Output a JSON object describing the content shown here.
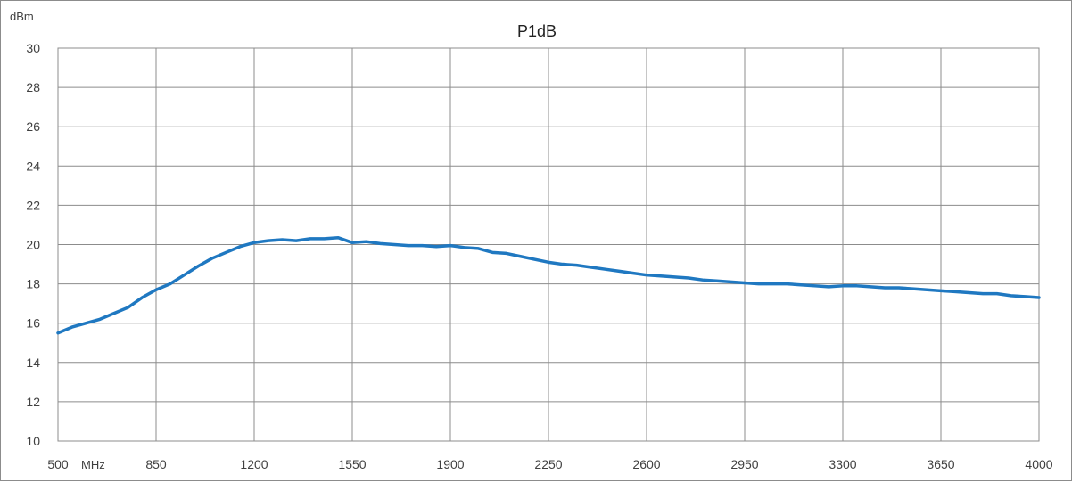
{
  "chart_data": {
    "type": "line",
    "title": "P1dB",
    "ylabel": "dBm",
    "x_unit": "MHz",
    "xlim": [
      500,
      4000
    ],
    "ylim": [
      10,
      30
    ],
    "x_ticks": [
      500,
      850,
      1200,
      1550,
      1900,
      2250,
      2600,
      2950,
      3300,
      3650,
      4000
    ],
    "y_ticks": [
      10,
      12,
      14,
      16,
      18,
      20,
      22,
      24,
      26,
      28,
      30
    ],
    "grid": true,
    "series": [
      {
        "color": "#1f78c1",
        "points": [
          [
            500,
            15.5
          ],
          [
            550,
            15.8
          ],
          [
            600,
            16.0
          ],
          [
            650,
            16.2
          ],
          [
            700,
            16.5
          ],
          [
            750,
            16.8
          ],
          [
            800,
            17.3
          ],
          [
            850,
            17.7
          ],
          [
            900,
            18.0
          ],
          [
            950,
            18.45
          ],
          [
            1000,
            18.9
          ],
          [
            1050,
            19.3
          ],
          [
            1100,
            19.6
          ],
          [
            1150,
            19.9
          ],
          [
            1200,
            20.1
          ],
          [
            1250,
            20.2
          ],
          [
            1300,
            20.25
          ],
          [
            1350,
            20.2
          ],
          [
            1400,
            20.3
          ],
          [
            1450,
            20.3
          ],
          [
            1500,
            20.35
          ],
          [
            1550,
            20.1
          ],
          [
            1600,
            20.15
          ],
          [
            1650,
            20.05
          ],
          [
            1700,
            20.0
          ],
          [
            1750,
            19.95
          ],
          [
            1800,
            19.95
          ],
          [
            1850,
            19.9
          ],
          [
            1900,
            19.95
          ],
          [
            1950,
            19.85
          ],
          [
            2000,
            19.8
          ],
          [
            2050,
            19.6
          ],
          [
            2100,
            19.55
          ],
          [
            2150,
            19.4
          ],
          [
            2200,
            19.25
          ],
          [
            2250,
            19.1
          ],
          [
            2300,
            19.0
          ],
          [
            2350,
            18.95
          ],
          [
            2400,
            18.85
          ],
          [
            2450,
            18.75
          ],
          [
            2500,
            18.65
          ],
          [
            2550,
            18.55
          ],
          [
            2600,
            18.45
          ],
          [
            2650,
            18.4
          ],
          [
            2700,
            18.35
          ],
          [
            2750,
            18.3
          ],
          [
            2800,
            18.2
          ],
          [
            2850,
            18.15
          ],
          [
            2900,
            18.1
          ],
          [
            2950,
            18.05
          ],
          [
            3000,
            18.0
          ],
          [
            3050,
            18.0
          ],
          [
            3100,
            18.0
          ],
          [
            3150,
            17.95
          ],
          [
            3200,
            17.9
          ],
          [
            3250,
            17.85
          ],
          [
            3300,
            17.9
          ],
          [
            3350,
            17.9
          ],
          [
            3400,
            17.85
          ],
          [
            3450,
            17.8
          ],
          [
            3500,
            17.8
          ],
          [
            3550,
            17.75
          ],
          [
            3600,
            17.7
          ],
          [
            3650,
            17.65
          ],
          [
            3700,
            17.6
          ],
          [
            3750,
            17.55
          ],
          [
            3800,
            17.5
          ],
          [
            3850,
            17.5
          ],
          [
            3900,
            17.4
          ],
          [
            3950,
            17.35
          ],
          [
            4000,
            17.3
          ]
        ]
      }
    ]
  }
}
